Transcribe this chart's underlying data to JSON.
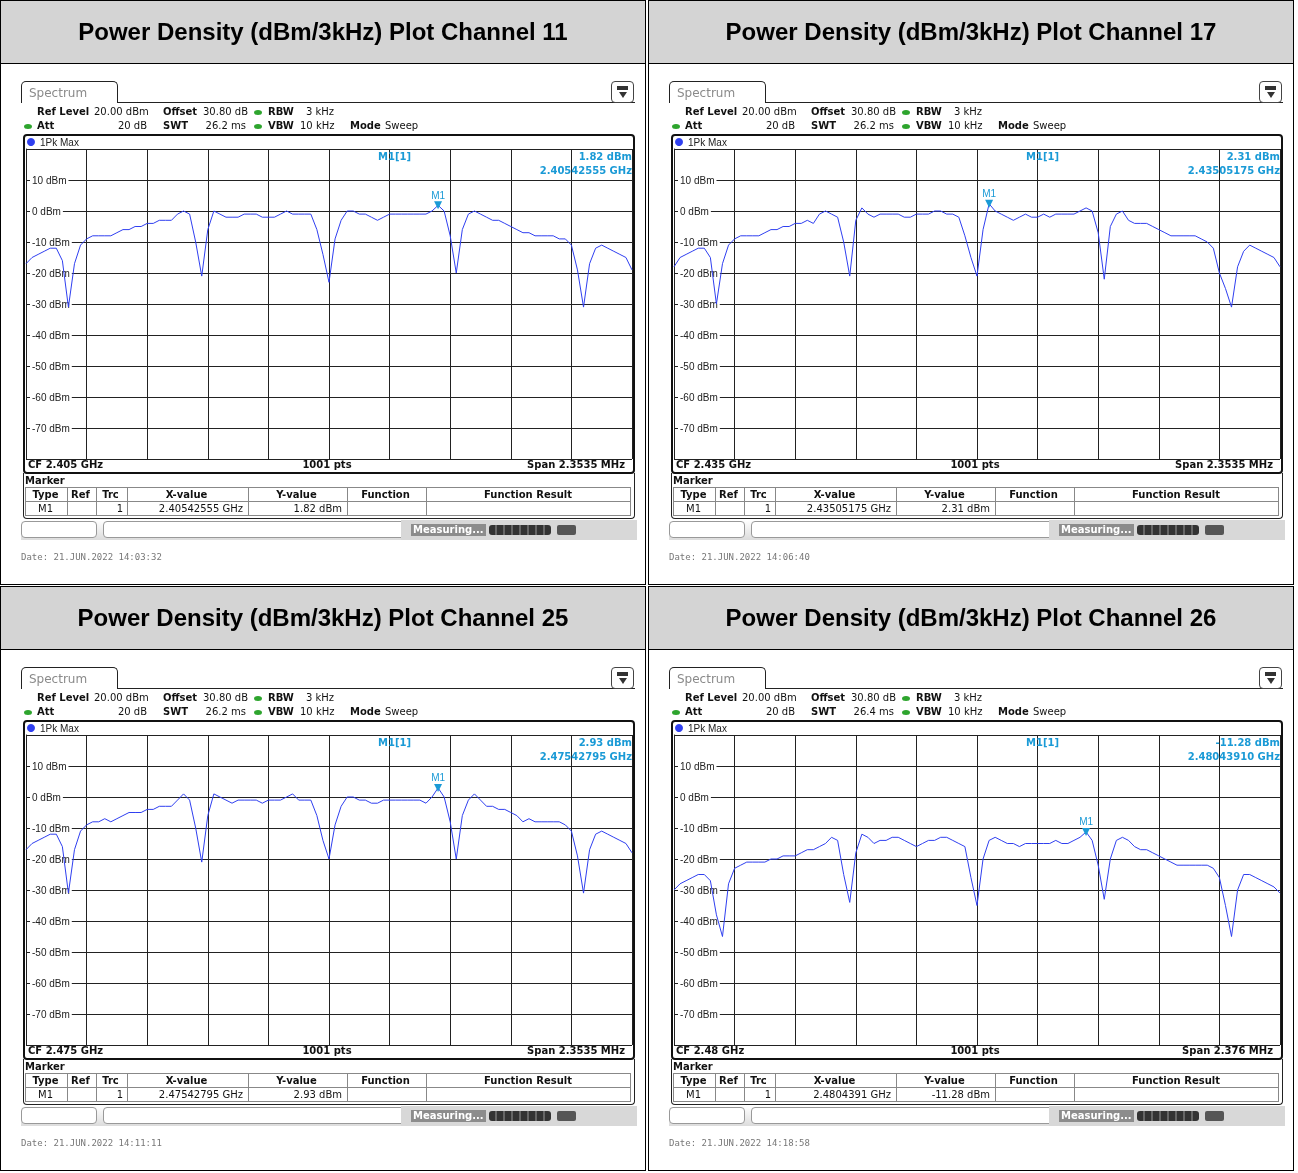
{
  "chart_data": [
    {
      "type": "line",
      "title": "Power Density (dBm/3kHz) Plot Channel 11",
      "categories": [
        null,
        null,
        null,
        null,
        null,
        null,
        null,
        null,
        null,
        null,
        null,
        null,
        null,
        null,
        null,
        null,
        null,
        null,
        null,
        null,
        null,
        null,
        null,
        null,
        null,
        null,
        null,
        null,
        null,
        null,
        null,
        null,
        null,
        null,
        null,
        null,
        null,
        null,
        null,
        null,
        null,
        null,
        null,
        null,
        null,
        null,
        null,
        null,
        null,
        null,
        null,
        null,
        null,
        null,
        null,
        null,
        null,
        null,
        null,
        null,
        null,
        null,
        null,
        null,
        null,
        null,
        null,
        null,
        null,
        null,
        null,
        null,
        null,
        null,
        null,
        null,
        null,
        null,
        null,
        null,
        null,
        null,
        null,
        null,
        null,
        null,
        null,
        null,
        null,
        null,
        null,
        null,
        null,
        null,
        null,
        null,
        null,
        null,
        null,
        null,
        null
      ],
      "series": [
        {
          "name": "1Pk Max",
          "color": "#2f3ff0",
          "values": [
            -17,
            -15,
            -14,
            -13,
            -12,
            -12,
            -16,
            -31,
            -17,
            -11,
            -9,
            -8,
            -8,
            -8,
            -8,
            -7,
            -6,
            -6,
            -5,
            -5,
            -4,
            -4,
            -3,
            -3,
            -3,
            -1,
            0,
            -1,
            -10,
            -21,
            -6,
            0,
            -1,
            -2,
            -2,
            -2,
            -1,
            -1,
            -1,
            -2,
            -2,
            -2,
            -1,
            0,
            -1,
            -1,
            -1,
            -1,
            -6,
            -14,
            -23,
            -9,
            -3,
            0,
            0,
            -1,
            -1,
            -2,
            -3,
            -2,
            -1,
            -1,
            -1,
            -1,
            -1,
            -1,
            -1,
            0,
            1.82,
            0,
            -8,
            -20,
            -6,
            -1,
            0,
            -1,
            -2,
            -3,
            -3,
            -4,
            -5,
            -6,
            -7,
            -7,
            -8,
            -8,
            -8,
            -8,
            -9,
            -9,
            -11,
            -19,
            -31,
            -17,
            -12,
            -11,
            -12,
            -13,
            -14,
            -15,
            -19
          ]
        }
      ],
      "ylim": [
        -80,
        20
      ],
      "yticks": [
        {
          "value": 10,
          "label": "10 dBm"
        },
        {
          "value": 0,
          "label": "0 dBm"
        },
        {
          "value": -10,
          "label": "-10 dBm"
        },
        {
          "value": -20,
          "label": "-20 dBm"
        },
        {
          "value": -30,
          "label": "-30 dBm"
        },
        {
          "value": -40,
          "label": "-40 dBm"
        },
        {
          "value": -50,
          "label": "-50 dBm"
        },
        {
          "value": -60,
          "label": "-60 dBm"
        },
        {
          "value": -70,
          "label": "-70 dBm"
        }
      ],
      "grid": true,
      "legend": "top left",
      "tick_labels": "y",
      "marker": "none",
      "annotations": [
        "Spectrum",
        "Ref Level",
        "20.00 dBm",
        "Offset",
        "30.80 dB",
        "RBW",
        "3 kHz",
        "Att",
        "20 dB",
        "SWT",
        "26.2 ms",
        "VBW",
        "10 kHz",
        "Mode",
        "Sweep",
        "M1[1]",
        "1.82 dBm",
        "2.40542555 GHz",
        "CF 2.405 GHz",
        "1001 pts",
        "Span 2.3535 MHz",
        "Marker",
        "Type",
        "Ref",
        "Trc",
        "X-value",
        "Y-value",
        "Function",
        "Function Result",
        "M1",
        "1",
        "2.40542555 GHz",
        "1.82 dBm",
        "Measuring...",
        "Date: 21.JUN.2022  14:03:32",
        {
          "text": "M1",
          "y": 1.82
        }
      ]
    },
    {
      "type": "line",
      "title": "Power Density (dBm/3kHz) Plot Channel 17",
      "categories": [
        null,
        null,
        null,
        null,
        null,
        null,
        null,
        null,
        null,
        null,
        null,
        null,
        null,
        null,
        null,
        null,
        null,
        null,
        null,
        null,
        null,
        null,
        null,
        null,
        null,
        null,
        null,
        null,
        null,
        null,
        null,
        null,
        null,
        null,
        null,
        null,
        null,
        null,
        null,
        null,
        null,
        null,
        null,
        null,
        null,
        null,
        null,
        null,
        null,
        null,
        null,
        null,
        null,
        null,
        null,
        null,
        null,
        null,
        null,
        null,
        null,
        null,
        null,
        null,
        null,
        null,
        null,
        null,
        null,
        null,
        null,
        null,
        null,
        null,
        null,
        null,
        null,
        null,
        null,
        null,
        null,
        null,
        null,
        null,
        null,
        null,
        null,
        null,
        null,
        null,
        null,
        null,
        null,
        null,
        null,
        null,
        null,
        null,
        null,
        null,
        null
      ],
      "series": [
        {
          "name": "1Pk Max",
          "color": "#2f3ff0",
          "values": [
            -18,
            -15,
            -14,
            -13,
            -12,
            -12,
            -15,
            -30,
            -17,
            -11,
            -9,
            -8,
            -8,
            -8,
            -8,
            -7,
            -6,
            -6,
            -5,
            -5,
            -4,
            -4,
            -3,
            -4,
            -1,
            0,
            -1,
            -2,
            -10,
            -21,
            -3,
            1,
            -1,
            -2,
            -1,
            -1,
            -1,
            -1,
            -2,
            -2,
            -1,
            -1,
            -1,
            0,
            0,
            -1,
            -1,
            -2,
            -8,
            -15,
            -21,
            -6,
            2.31,
            0,
            -1,
            -2,
            -3,
            -2,
            -1,
            -2,
            -2,
            -1,
            -2,
            -1,
            -1,
            -1,
            -1,
            0,
            1,
            0,
            -7,
            -22,
            -5,
            -1,
            0,
            -3,
            -4,
            -4,
            -4,
            -5,
            -6,
            -7,
            -8,
            -8,
            -8,
            -8,
            -8,
            -9,
            -10,
            -12,
            -20,
            -25,
            -31,
            -18,
            -13,
            -11,
            -12,
            -13,
            -14,
            -15,
            -18
          ]
        }
      ],
      "ylim": [
        -80,
        20
      ],
      "yticks": [
        {
          "value": 10,
          "label": "10 dBm"
        },
        {
          "value": 0,
          "label": "0 dBm"
        },
        {
          "value": -10,
          "label": "-10 dBm"
        },
        {
          "value": -20,
          "label": "-20 dBm"
        },
        {
          "value": -30,
          "label": "-30 dBm"
        },
        {
          "value": -40,
          "label": "-40 dBm"
        },
        {
          "value": -50,
          "label": "-50 dBm"
        },
        {
          "value": -60,
          "label": "-60 dBm"
        },
        {
          "value": -70,
          "label": "-70 dBm"
        }
      ],
      "grid": true,
      "legend": "top left",
      "tick_labels": "y",
      "marker": "none",
      "annotations": [
        "Spectrum",
        "Ref Level",
        "20.00 dBm",
        "Offset",
        "30.80 dB",
        "RBW",
        "3 kHz",
        "Att",
        "20 dB",
        "SWT",
        "26.2 ms",
        "VBW",
        "10 kHz",
        "Mode",
        "Sweep",
        "M1[1]",
        "2.31 dBm",
        "2.43505175 GHz",
        "CF 2.435 GHz",
        "1001 pts",
        "Span 2.3535 MHz",
        "Marker",
        "Type",
        "Ref",
        "Trc",
        "X-value",
        "Y-value",
        "Function",
        "Function Result",
        "M1",
        "1",
        "2.43505175 GHz",
        "2.31 dBm",
        "Measuring...",
        "Date: 21.JUN.2022  14:06:40",
        {
          "text": "M1",
          "y": 2.31
        }
      ]
    },
    {
      "type": "line",
      "title": "Power Density (dBm/3kHz) Plot Channel 25",
      "categories": [
        null,
        null,
        null,
        null,
        null,
        null,
        null,
        null,
        null,
        null,
        null,
        null,
        null,
        null,
        null,
        null,
        null,
        null,
        null,
        null,
        null,
        null,
        null,
        null,
        null,
        null,
        null,
        null,
        null,
        null,
        null,
        null,
        null,
        null,
        null,
        null,
        null,
        null,
        null,
        null,
        null,
        null,
        null,
        null,
        null,
        null,
        null,
        null,
        null,
        null,
        null,
        null,
        null,
        null,
        null,
        null,
        null,
        null,
        null,
        null,
        null,
        null,
        null,
        null,
        null,
        null,
        null,
        null,
        null,
        null,
        null,
        null,
        null,
        null,
        null,
        null,
        null,
        null,
        null,
        null,
        null,
        null,
        null,
        null,
        null,
        null,
        null,
        null,
        null,
        null,
        null,
        null,
        null,
        null,
        null,
        null,
        null,
        null,
        null,
        null,
        null
      ],
      "series": [
        {
          "name": "1Pk Max",
          "color": "#2f3ff0",
          "values": [
            -17,
            -15,
            -14,
            -13,
            -12,
            -12,
            -16,
            -31,
            -17,
            -11,
            -9,
            -8,
            -8,
            -7,
            -8,
            -7,
            -6,
            -5,
            -5,
            -5,
            -4,
            -4,
            -3,
            -3,
            -3,
            -1,
            1,
            -1,
            -10,
            -21,
            -6,
            1,
            0,
            -1,
            -2,
            -1,
            -1,
            -1,
            -1,
            -2,
            -1,
            -1,
            -1,
            0,
            1,
            -1,
            -1,
            -1,
            -6,
            -14,
            -20,
            -9,
            -3,
            0,
            0,
            -1,
            -1,
            -2,
            -2,
            -1,
            -1,
            -1,
            -1,
            -1,
            -1,
            -1,
            -2,
            0,
            2.93,
            0,
            -8,
            -20,
            -6,
            -1,
            1,
            -1,
            -3,
            -3,
            -4,
            -4,
            -5,
            -6,
            -8,
            -7,
            -8,
            -8,
            -8,
            -8,
            -8,
            -9,
            -11,
            -19,
            -31,
            -17,
            -12,
            -11,
            -12,
            -13,
            -14,
            -15,
            -18
          ]
        }
      ],
      "ylim": [
        -80,
        20
      ],
      "yticks": [
        {
          "value": 10,
          "label": "10 dBm"
        },
        {
          "value": 0,
          "label": "0 dBm"
        },
        {
          "value": -10,
          "label": "-10 dBm"
        },
        {
          "value": -20,
          "label": "-20 dBm"
        },
        {
          "value": -30,
          "label": "-30 dBm"
        },
        {
          "value": -40,
          "label": "-40 dBm"
        },
        {
          "value": -50,
          "label": "-50 dBm"
        },
        {
          "value": -60,
          "label": "-60 dBm"
        },
        {
          "value": -70,
          "label": "-70 dBm"
        }
      ],
      "grid": true,
      "legend": "top left",
      "tick_labels": "y",
      "marker": "none",
      "annotations": [
        "Spectrum",
        "Ref Level",
        "20.00 dBm",
        "Offset",
        "30.80 dB",
        "RBW",
        "3 kHz",
        "Att",
        "20 dB",
        "SWT",
        "26.2 ms",
        "VBW",
        "10 kHz",
        "Mode",
        "Sweep",
        "M1[1]",
        "2.93 dBm",
        "2.47542795 GHz",
        "CF 2.475 GHz",
        "1001 pts",
        "Span 2.3535 MHz",
        "Marker",
        "Type",
        "Ref",
        "Trc",
        "X-value",
        "Y-value",
        "Function",
        "Function Result",
        "M1",
        "1",
        "2.47542795 GHz",
        "2.93 dBm",
        "Measuring...",
        "Date: 21.JUN.2022  14:11:11",
        {
          "text": "M1",
          "y": 2.93
        }
      ]
    },
    {
      "type": "line",
      "title": "Power Density (dBm/3kHz) Plot Channel 26",
      "categories": [
        null,
        null,
        null,
        null,
        null,
        null,
        null,
        null,
        null,
        null,
        null,
        null,
        null,
        null,
        null,
        null,
        null,
        null,
        null,
        null,
        null,
        null,
        null,
        null,
        null,
        null,
        null,
        null,
        null,
        null,
        null,
        null,
        null,
        null,
        null,
        null,
        null,
        null,
        null,
        null,
        null,
        null,
        null,
        null,
        null,
        null,
        null,
        null,
        null,
        null,
        null,
        null,
        null,
        null,
        null,
        null,
        null,
        null,
        null,
        null,
        null,
        null,
        null,
        null,
        null,
        null,
        null,
        null,
        null,
        null,
        null,
        null,
        null,
        null,
        null,
        null,
        null,
        null,
        null,
        null,
        null,
        null,
        null,
        null,
        null,
        null,
        null,
        null,
        null,
        null,
        null,
        null,
        null,
        null,
        null,
        null,
        null,
        null,
        null,
        null,
        null
      ],
      "series": [
        {
          "name": "1Pk Max",
          "color": "#2f3ff0",
          "values": [
            -30,
            -28,
            -27,
            -26,
            -25,
            -25,
            -27,
            -38,
            -45,
            -28,
            -23,
            -22,
            -21,
            -21,
            -21,
            -21,
            -20,
            -20,
            -19,
            -19,
            -19,
            -18,
            -17,
            -17,
            -16,
            -15,
            -13,
            -14,
            -25,
            -34,
            -18,
            -12,
            -13,
            -15,
            -14,
            -14,
            -13,
            -13,
            -14,
            -15,
            -16,
            -15,
            -14,
            -14,
            -13,
            -13,
            -14,
            -15,
            -16,
            -26,
            -35,
            -20,
            -14,
            -13,
            -14,
            -15,
            -15,
            -16,
            -15,
            -15,
            -15,
            -15,
            -15,
            -14,
            -15,
            -15,
            -14,
            -13,
            -11.28,
            -14,
            -22,
            -33,
            -20,
            -14,
            -13,
            -14,
            -16,
            -17,
            -17,
            -18,
            -19,
            -20,
            -21,
            -22,
            -22,
            -22,
            -22,
            -22,
            -22,
            -23,
            -26,
            -35,
            -45,
            -30,
            -25,
            -25,
            -26,
            -27,
            -28,
            -29,
            -31
          ]
        }
      ],
      "ylim": [
        -80,
        20
      ],
      "yticks": [
        {
          "value": 10,
          "label": "10 dBm"
        },
        {
          "value": 0,
          "label": "0 dBm"
        },
        {
          "value": -10,
          "label": "-10 dBm"
        },
        {
          "value": -20,
          "label": "-20 dBm"
        },
        {
          "value": -30,
          "label": "-30 dBm"
        },
        {
          "value": -40,
          "label": "-40 dBm"
        },
        {
          "value": -50,
          "label": "-50 dBm"
        },
        {
          "value": -60,
          "label": "-60 dBm"
        },
        {
          "value": -70,
          "label": "-70 dBm"
        }
      ],
      "grid": true,
      "legend": "top left",
      "tick_labels": "y",
      "marker": "none",
      "annotations": [
        "Spectrum",
        "Ref Level",
        "20.00 dBm",
        "Offset",
        "30.80 dB",
        "RBW",
        "3 kHz",
        "Att",
        "20 dB",
        "SWT",
        "26.4 ms",
        "VBW",
        "10 kHz",
        "Mode",
        "Sweep",
        "M1[1]",
        "-11.28 dBm",
        "2.48043910 GHz",
        "CF 2.48 GHz",
        "1001 pts",
        "Span 2.376 MHz",
        "Marker",
        "Type",
        "Ref",
        "Trc",
        "X-value",
        "Y-value",
        "Function",
        "Function Result",
        "M1",
        "1",
        "2.4804391 GHz",
        "-11.28 dBm",
        "Measuring...",
        "Date: 21.JUN.2022  14:18:58",
        {
          "text": "M1",
          "y": -11.28
        }
      ]
    }
  ]
}
